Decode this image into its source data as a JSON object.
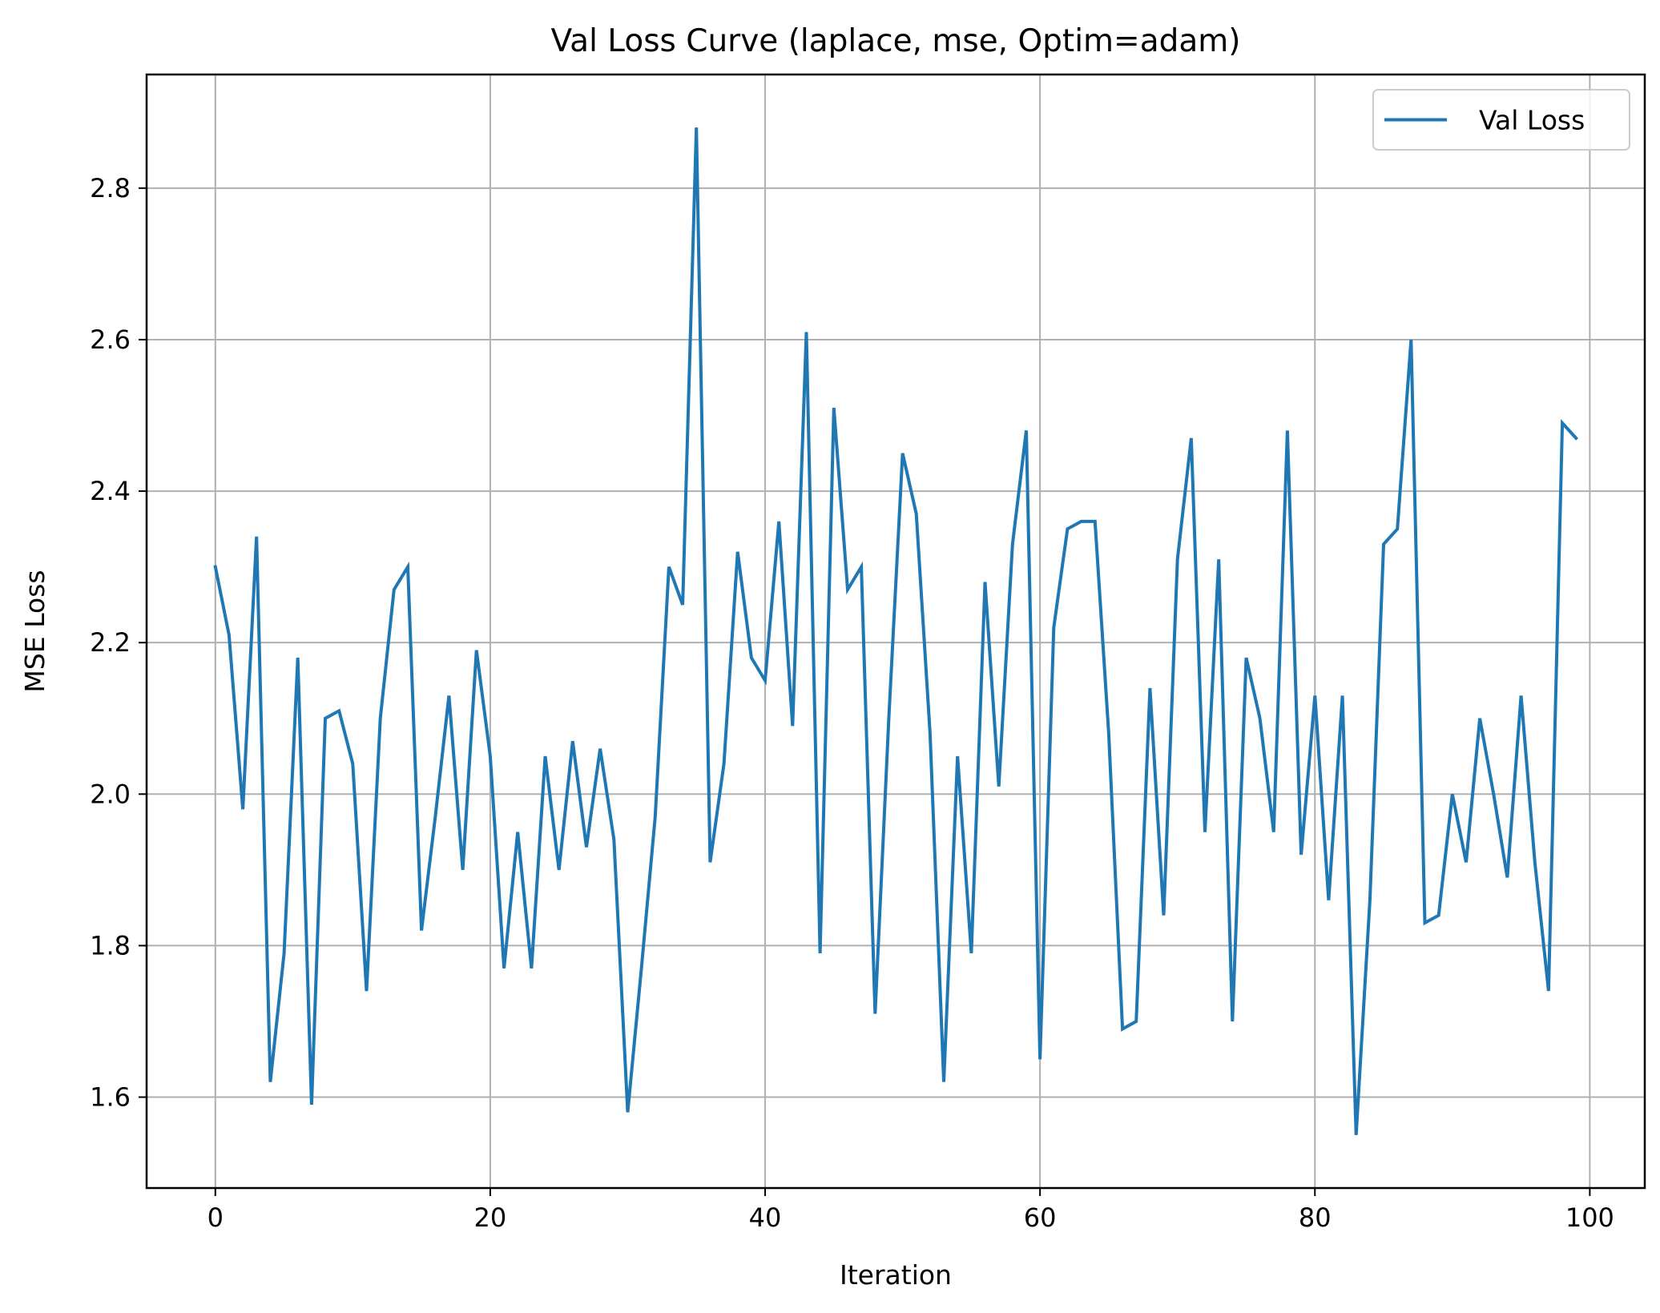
{
  "chart_data": {
    "type": "line",
    "title": "Val Loss Curve (laplace, mse, Optim=adam)",
    "xlabel": "Iteration",
    "ylabel": "MSE Loss",
    "xlim": [
      -5,
      104
    ],
    "ylim": [
      1.48,
      2.95
    ],
    "xticks": [
      0,
      20,
      40,
      60,
      80,
      100
    ],
    "yticks": [
      1.6,
      1.8,
      2.0,
      2.2,
      2.4,
      2.6,
      2.8
    ],
    "xtick_labels": [
      "0",
      "20",
      "40",
      "60",
      "80",
      "100"
    ],
    "ytick_labels": [
      "1.6",
      "1.8",
      "2.0",
      "2.2",
      "2.4",
      "2.6",
      "2.8"
    ],
    "grid": true,
    "legend_position": "top-right",
    "series": [
      {
        "name": "Val Loss",
        "color": "#1f77b4",
        "x": [
          0,
          1,
          2,
          3,
          4,
          5,
          6,
          7,
          8,
          9,
          10,
          11,
          12,
          13,
          14,
          15,
          16,
          17,
          18,
          19,
          20,
          21,
          22,
          23,
          24,
          25,
          26,
          27,
          28,
          29,
          30,
          31,
          32,
          33,
          34,
          35,
          36,
          37,
          38,
          39,
          40,
          41,
          42,
          43,
          44,
          45,
          46,
          47,
          48,
          49,
          50,
          51,
          52,
          53,
          54,
          55,
          56,
          57,
          58,
          59,
          60,
          61,
          62,
          63,
          64,
          65,
          66,
          67,
          68,
          69,
          70,
          71,
          72,
          73,
          74,
          75,
          76,
          77,
          78,
          79,
          80,
          81,
          82,
          83,
          84,
          85,
          86,
          87,
          88,
          89,
          90,
          91,
          92,
          93,
          94,
          95,
          96,
          97,
          98,
          99
        ],
        "values": [
          2.3,
          2.21,
          1.98,
          2.34,
          1.62,
          1.79,
          2.18,
          1.59,
          2.1,
          2.11,
          2.04,
          1.74,
          2.1,
          2.27,
          2.3,
          1.82,
          1.97,
          2.13,
          1.9,
          2.19,
          2.05,
          1.77,
          1.95,
          1.77,
          2.05,
          1.9,
          2.07,
          1.93,
          2.06,
          1.94,
          1.58,
          1.77,
          1.97,
          2.3,
          2.25,
          2.88,
          1.91,
          2.04,
          2.32,
          2.18,
          2.15,
          2.36,
          2.09,
          2.61,
          1.79,
          2.51,
          2.27,
          2.3,
          1.71,
          2.1,
          2.45,
          2.37,
          2.08,
          1.62,
          2.05,
          1.79,
          2.28,
          2.01,
          2.33,
          2.48,
          1.65,
          2.22,
          2.35,
          2.36,
          2.36,
          2.08,
          1.69,
          1.7,
          2.14,
          1.84,
          2.31,
          2.47,
          1.95,
          2.31,
          1.7,
          2.18,
          2.1,
          1.95,
          2.48,
          1.92,
          2.13,
          1.86,
          2.13,
          1.55,
          1.86,
          2.33,
          2.35,
          2.6,
          1.83,
          1.84,
          2.0,
          1.91,
          2.1,
          2.0,
          1.89,
          2.13,
          1.91,
          1.74,
          2.49,
          2.47
        ]
      }
    ]
  }
}
